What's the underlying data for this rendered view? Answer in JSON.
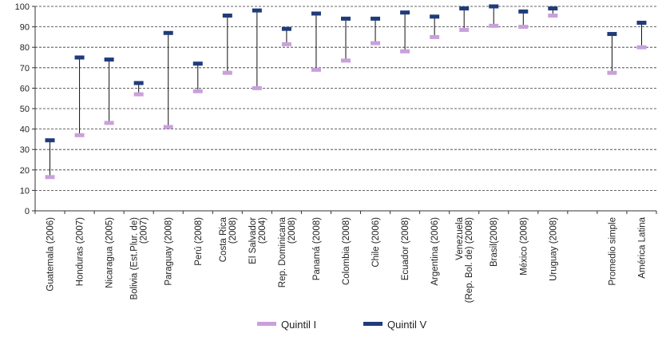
{
  "chart_data": {
    "type": "range",
    "title": "",
    "xlabel": "",
    "ylabel": "",
    "ylim": [
      0,
      100
    ],
    "yticks": [
      0,
      10,
      20,
      30,
      40,
      50,
      60,
      70,
      80,
      90,
      100
    ],
    "grid": true,
    "legend_position": "bottom",
    "categories": [
      [
        "Guatemala (2006)"
      ],
      [
        "Honduras (2007)"
      ],
      [
        "Nicaragua (2005)"
      ],
      [
        "Bolivia (Est.Plur. de)",
        "(2007)"
      ],
      [
        "Paraguay (2008)"
      ],
      [
        "Perú (2008)"
      ],
      [
        "Costa Rica",
        "(2008)"
      ],
      [
        "El Salvador",
        "(2004)"
      ],
      [
        "Rep. Dominicana",
        "(2008)"
      ],
      [
        "Panamá (2008)"
      ],
      [
        "Colombia (2008)"
      ],
      [
        "Chile (2006)"
      ],
      [
        "Ecuador (2008)"
      ],
      [
        "Argentina (2006)"
      ],
      [
        "Venezuela",
        "(Rep. Bol. de) (2008)"
      ],
      [
        "Brasil(2008)"
      ],
      [
        "México (2008)"
      ],
      [
        "Uruguay (2008)"
      ],
      [],
      [
        "Promedio simple"
      ],
      [
        "América Latina"
      ]
    ],
    "series": [
      {
        "name": "Quintil I",
        "color": "#c9a0dc",
        "values": [
          16.5,
          37,
          43,
          57,
          41,
          58.5,
          67.5,
          60,
          81.5,
          69,
          73.5,
          82,
          78,
          85,
          88.5,
          90.5,
          90,
          95.5,
          null,
          67.5,
          80
        ]
      },
      {
        "name": "Quintil V",
        "color": "#1f3b7a",
        "values": [
          34.5,
          75,
          74,
          62.5,
          87,
          72,
          95.5,
          98,
          89,
          96.5,
          94,
          94,
          97,
          95,
          99,
          100,
          97.5,
          99,
          null,
          86.5,
          92
        ]
      }
    ]
  }
}
